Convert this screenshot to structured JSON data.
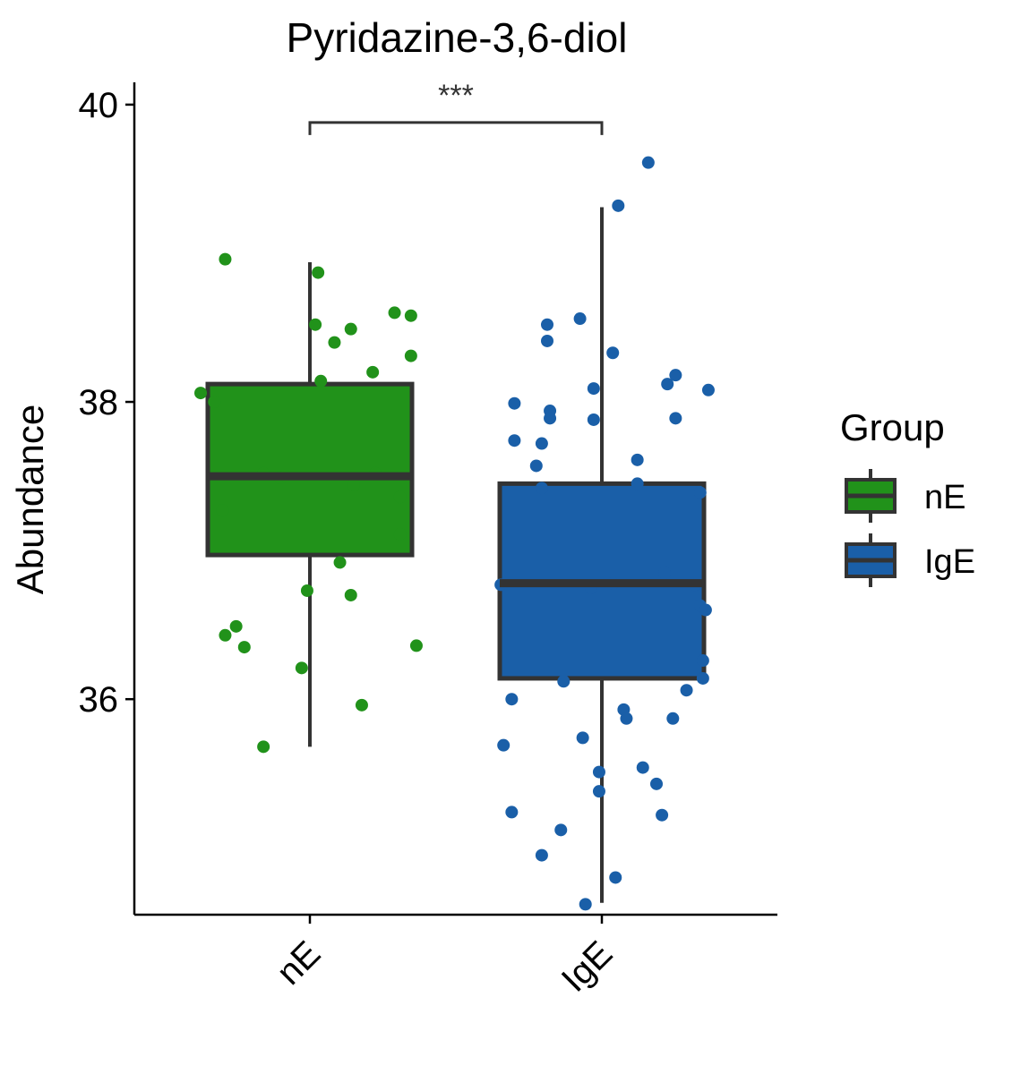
{
  "chart_data": {
    "type": "box",
    "title": "Pyridazine-3,6-diol",
    "xlabel": "",
    "ylabel": "Abundance",
    "ylim": [
      34.55,
      40.15
    ],
    "yticks": [
      36,
      38,
      40
    ],
    "categories": [
      "nE",
      "IgE"
    ],
    "legend": {
      "title": "Group",
      "position": "right",
      "entries": [
        "nE",
        "IgE"
      ]
    },
    "significance": {
      "label": "***",
      "between": [
        "nE",
        "IgE"
      ],
      "y": 39.88
    },
    "colors": {
      "nE": "#21921a",
      "IgE": "#1a5fa8",
      "box_line": "#333333"
    },
    "groups": [
      {
        "name": "nE",
        "stats": {
          "whisker_low": 35.68,
          "q1": 36.97,
          "median": 37.5,
          "q3": 38.12,
          "whisker_high": 38.94
        },
        "points": [
          [
            -0.4,
            38.06
          ],
          [
            -0.35,
            38.0
          ],
          [
            -0.32,
            37.27
          ],
          [
            -0.31,
            38.96
          ],
          [
            -0.31,
            36.43
          ],
          [
            -0.27,
            36.49
          ],
          [
            -0.24,
            36.35
          ],
          [
            -0.17,
            35.68
          ],
          [
            -0.17,
            37.52
          ],
          [
            -0.11,
            37.49
          ],
          [
            -0.09,
            37.5
          ],
          [
            -0.03,
            36.21
          ],
          [
            -0.01,
            36.73
          ],
          [
            0.02,
            38.52
          ],
          [
            0.03,
            38.87
          ],
          [
            0.04,
            38.14
          ],
          [
            0.09,
            38.4
          ],
          [
            0.11,
            36.92
          ],
          [
            0.15,
            38.49
          ],
          [
            0.15,
            36.7
          ],
          [
            0.16,
            37.44
          ],
          [
            0.19,
            35.96
          ],
          [
            0.23,
            38.2
          ],
          [
            0.24,
            37.52
          ],
          [
            0.31,
            38.6
          ],
          [
            0.33,
            37.36
          ],
          [
            0.33,
            37.11
          ],
          [
            0.37,
            38.58
          ],
          [
            0.37,
            38.31
          ],
          [
            0.39,
            36.36
          ]
        ]
      },
      {
        "name": "IgE",
        "stats": {
          "whisker_low": 34.63,
          "q1": 36.14,
          "median": 36.78,
          "q3": 37.45,
          "whisker_high": 39.31
        },
        "points": [
          [
            -0.37,
            36.77
          ],
          [
            -0.36,
            35.69
          ],
          [
            -0.33,
            35.24
          ],
          [
            -0.33,
            36.0
          ],
          [
            -0.32,
            37.99
          ],
          [
            -0.32,
            37.74
          ],
          [
            -0.24,
            37.57
          ],
          [
            -0.22,
            37.42
          ],
          [
            -0.22,
            37.72
          ],
          [
            -0.22,
            34.95
          ],
          [
            -0.2,
            38.52
          ],
          [
            -0.2,
            38.41
          ],
          [
            -0.19,
            37.94
          ],
          [
            -0.19,
            37.89
          ],
          [
            -0.15,
            35.12
          ],
          [
            -0.14,
            36.12
          ],
          [
            -0.08,
            38.56
          ],
          [
            -0.07,
            35.74
          ],
          [
            -0.06,
            34.62
          ],
          [
            -0.04,
            36.75
          ],
          [
            -0.03,
            38.09
          ],
          [
            -0.03,
            37.88
          ],
          [
            -0.01,
            35.51
          ],
          [
            -0.01,
            35.38
          ],
          [
            0.04,
            36.78
          ],
          [
            0.04,
            38.33
          ],
          [
            0.05,
            34.8
          ],
          [
            0.06,
            39.32
          ],
          [
            0.08,
            35.93
          ],
          [
            0.09,
            35.87
          ],
          [
            0.13,
            37.45
          ],
          [
            0.13,
            37.61
          ],
          [
            0.15,
            35.54
          ],
          [
            0.2,
            35.43
          ],
          [
            0.22,
            35.22
          ],
          [
            0.23,
            36.85
          ],
          [
            0.24,
            38.12
          ],
          [
            0.26,
            35.87
          ],
          [
            0.27,
            37.89
          ],
          [
            0.27,
            38.18
          ],
          [
            0.31,
            36.06
          ],
          [
            0.34,
            36.77
          ],
          [
            0.36,
            37.39
          ],
          [
            0.36,
            36.63
          ],
          [
            0.37,
            36.26
          ],
          [
            0.37,
            36.14
          ],
          [
            0.38,
            36.6
          ],
          [
            0.39,
            38.08
          ],
          [
            0.17,
            39.61
          ]
        ]
      }
    ]
  }
}
